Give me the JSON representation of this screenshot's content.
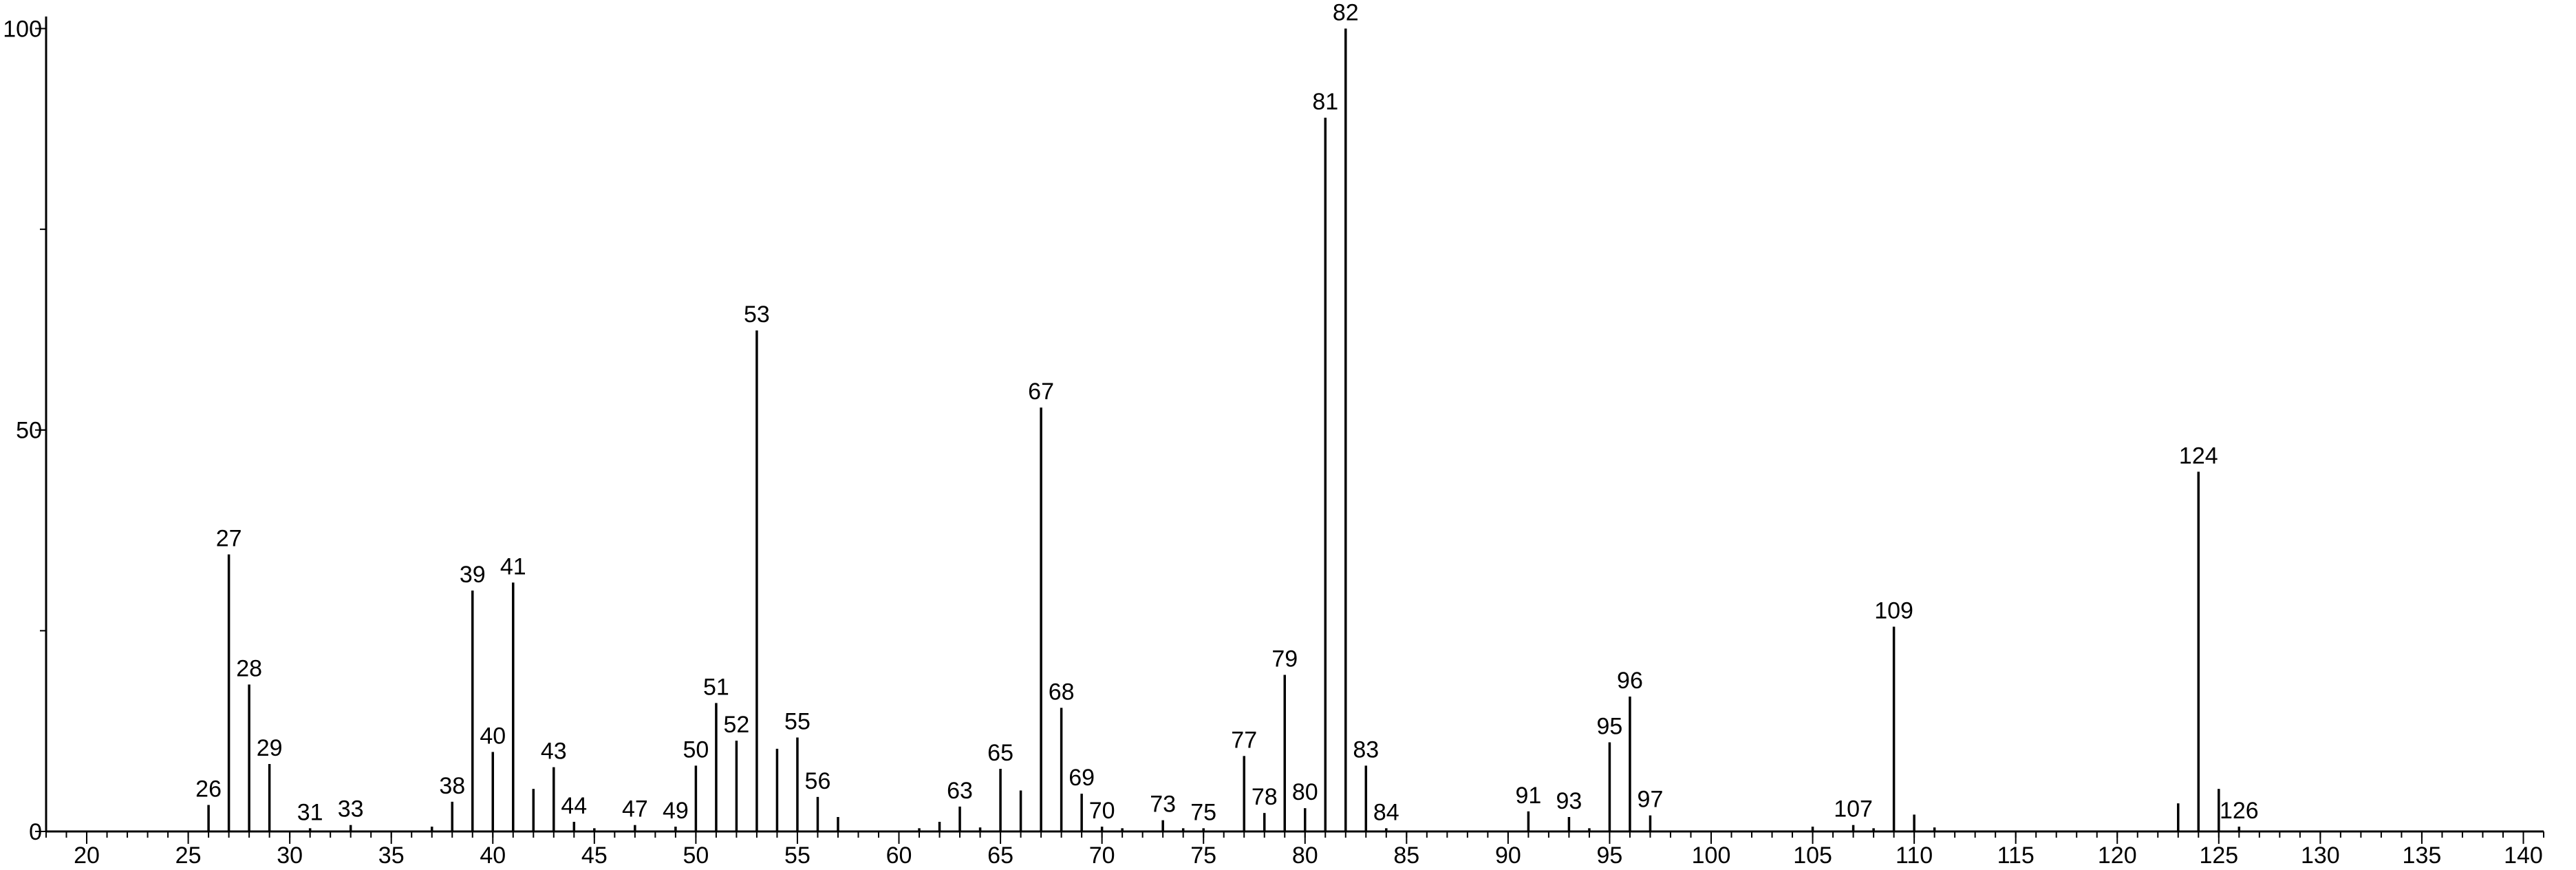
{
  "chart_data": {
    "type": "stem",
    "x": [
      26,
      27,
      28,
      29,
      31,
      33,
      37,
      38,
      39,
      40,
      41,
      42,
      43,
      44,
      45,
      47,
      49,
      50,
      51,
      52,
      53,
      54,
      55,
      56,
      57,
      61,
      62,
      63,
      64,
      65,
      66,
      67,
      68,
      69,
      70,
      71,
      73,
      74,
      75,
      77,
      78,
      79,
      80,
      81,
      82,
      83,
      84,
      91,
      93,
      94,
      95,
      96,
      97,
      105,
      107,
      108,
      109,
      110,
      111,
      123,
      124,
      125,
      126
    ],
    "values": [
      3.3,
      34.5,
      18.3,
      8.4,
      0.4,
      0.8,
      0.6,
      3.7,
      30,
      9.9,
      31,
      5.3,
      8,
      1.2,
      0.4,
      0.8,
      0.6,
      8.2,
      16,
      11.3,
      62.4,
      10.3,
      11.7,
      4.3,
      1.8,
      0.4,
      1.2,
      3.1,
      0.5,
      7.8,
      5.1,
      52.8,
      15.4,
      4.7,
      0.6,
      0.4,
      1.4,
      0.4,
      0.4,
      9.4,
      2.3,
      19.5,
      2.9,
      88.9,
      100,
      8.2,
      0.4,
      2.5,
      1.8,
      0.4,
      11.1,
      16.8,
      2,
      0.6,
      0.8,
      0.4,
      25.5,
      2.1,
      0.5,
      3.5,
      44.8,
      5.3,
      0.6
    ],
    "show_label": [
      true,
      true,
      true,
      true,
      true,
      true,
      false,
      true,
      true,
      true,
      true,
      false,
      true,
      true,
      false,
      true,
      true,
      true,
      true,
      true,
      true,
      false,
      true,
      true,
      false,
      false,
      false,
      true,
      false,
      true,
      false,
      true,
      true,
      true,
      true,
      false,
      true,
      false,
      true,
      true,
      true,
      true,
      true,
      true,
      true,
      true,
      true,
      true,
      true,
      false,
      true,
      true,
      true,
      false,
      true,
      false,
      true,
      false,
      false,
      false,
      true,
      false,
      true
    ],
    "color": "#000000",
    "xlim": [
      18,
      141
    ],
    "xticks": [
      20,
      25,
      30,
      35,
      40,
      45,
      50,
      55,
      60,
      65,
      70,
      75,
      80,
      85,
      90,
      95,
      100,
      105,
      110,
      115,
      120,
      125,
      130,
      135,
      140
    ],
    "xminor_step": 1,
    "ylim": [
      0,
      101.5
    ],
    "yticks": [
      0,
      50,
      100
    ],
    "yminor_step": 25
  }
}
